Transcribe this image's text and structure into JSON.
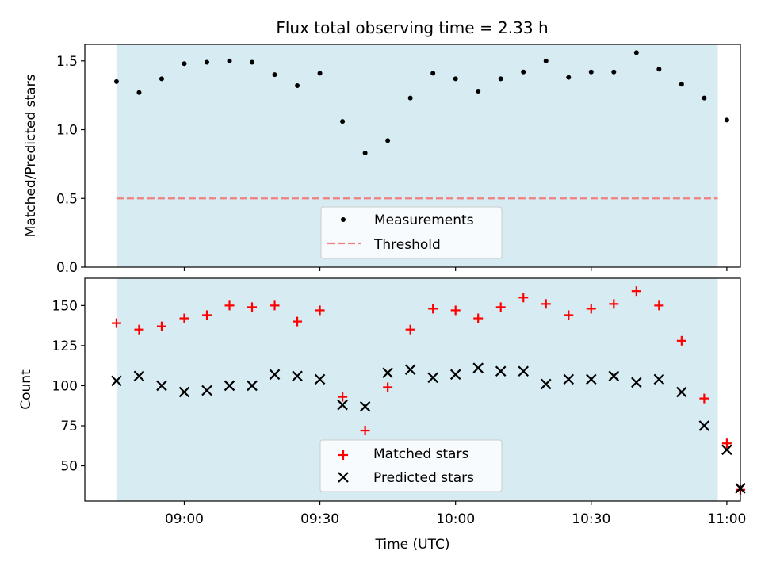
{
  "title": "Flux total observing time = 2.33 h",
  "colors": {
    "shade": "#add8e6",
    "threshold": "#f08080",
    "matched": "#ff0000",
    "predicted": "#000000",
    "measurement": "#000000"
  },
  "chart_data": [
    {
      "type": "scatter",
      "ylabel": "Matched/Predicted stars",
      "xlabel": "",
      "xlim": [
        "08:38",
        "11:03"
      ],
      "ylim": [
        0,
        1.62
      ],
      "yticks": [
        0.0,
        0.5,
        1.0,
        1.5
      ],
      "ytick_labels": [
        "0.0",
        "0.5",
        "1.0",
        "1.5"
      ],
      "grid": false,
      "legend_position": "bottom-center",
      "shaded_span": [
        "08:45",
        "10:58"
      ],
      "threshold": 0.5,
      "series": [
        {
          "name": "Measurements",
          "x": [
            "08:45",
            "08:50",
            "08:55",
            "09:00",
            "09:05",
            "09:10",
            "09:15",
            "09:20",
            "09:25",
            "09:30",
            "09:35",
            "09:40",
            "09:45",
            "09:50",
            "09:55",
            "10:00",
            "10:05",
            "10:10",
            "10:15",
            "10:20",
            "10:25",
            "10:30",
            "10:35",
            "10:40",
            "10:45",
            "10:50",
            "10:55",
            "11:00"
          ],
          "y": [
            1.35,
            1.27,
            1.37,
            1.48,
            1.49,
            1.5,
            1.49,
            1.4,
            1.32,
            1.41,
            1.06,
            0.83,
            0.92,
            1.23,
            1.41,
            1.37,
            1.28,
            1.37,
            1.42,
            1.5,
            1.38,
            1.42,
            1.42,
            1.56,
            1.44,
            1.33,
            1.23,
            1.07
          ]
        },
        {
          "name": "Threshold",
          "x": [
            "08:45",
            "10:58"
          ],
          "y": [
            0.5,
            0.5
          ]
        }
      ]
    },
    {
      "type": "scatter",
      "ylabel": "Count",
      "xlabel": "Time (UTC)",
      "xlim": [
        "08:38",
        "11:03"
      ],
      "ylim": [
        28,
        167
      ],
      "yticks": [
        50,
        75,
        100,
        125,
        150
      ],
      "ytick_labels": [
        "50",
        "75",
        "100",
        "125",
        "150"
      ],
      "xticks": [
        "09:00",
        "09:30",
        "10:00",
        "10:30",
        "11:00"
      ],
      "xtick_labels": [
        "09:00",
        "09:30",
        "10:00",
        "10:30",
        "11:00"
      ],
      "grid": false,
      "legend_position": "bottom-center",
      "shaded_span": [
        "08:45",
        "10:58"
      ],
      "series": [
        {
          "name": "Matched stars",
          "x": [
            "08:45",
            "08:50",
            "08:55",
            "09:00",
            "09:05",
            "09:10",
            "09:15",
            "09:20",
            "09:25",
            "09:30",
            "09:35",
            "09:40",
            "09:45",
            "09:50",
            "09:55",
            "10:00",
            "10:05",
            "10:10",
            "10:15",
            "10:20",
            "10:25",
            "10:30",
            "10:35",
            "10:40",
            "10:45",
            "10:50",
            "10:55",
            "11:00",
            "11:03"
          ],
          "y": [
            139,
            135,
            137,
            142,
            144,
            150,
            149,
            150,
            140,
            147,
            93,
            72,
            99,
            135,
            148,
            147,
            142,
            149,
            155,
            151,
            144,
            148,
            151,
            159,
            150,
            128,
            92,
            64,
            35
          ]
        },
        {
          "name": "Predicted stars",
          "x": [
            "08:45",
            "08:50",
            "08:55",
            "09:00",
            "09:05",
            "09:10",
            "09:15",
            "09:20",
            "09:25",
            "09:30",
            "09:35",
            "09:40",
            "09:45",
            "09:50",
            "09:55",
            "10:00",
            "10:05",
            "10:10",
            "10:15",
            "10:20",
            "10:25",
            "10:30",
            "10:35",
            "10:40",
            "10:45",
            "10:50",
            "10:55",
            "11:00",
            "11:03"
          ],
          "y": [
            103,
            106,
            100,
            96,
            97,
            100,
            100,
            107,
            106,
            104,
            88,
            87,
            108,
            110,
            105,
            107,
            111,
            109,
            109,
            101,
            104,
            104,
            106,
            102,
            104,
            96,
            75,
            60,
            36
          ]
        }
      ]
    }
  ]
}
